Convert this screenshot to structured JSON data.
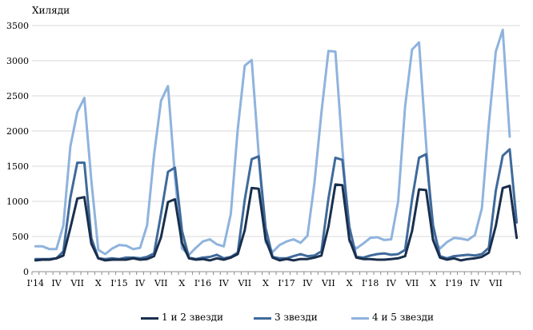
{
  "chart_data": {
    "type": "line",
    "unit_label": "Хиляди",
    "ylim": [
      0,
      3500
    ],
    "yticks": [
      0,
      500,
      1000,
      1500,
      2000,
      2500,
      3000,
      3500
    ],
    "x_tick_labels": [
      "I'14",
      "IV",
      "VII",
      "X",
      "I'15",
      "IV",
      "VII",
      "X",
      "I'16",
      "IV",
      "VII",
      "X",
      "I'17",
      "IV",
      "VII",
      "X",
      "I'18",
      "IV",
      "VII",
      "X",
      "I'19",
      "IV",
      "VII"
    ],
    "grid": "horizontal",
    "legend_position": "bottom",
    "series": [
      {
        "name": "1 и 2 звезди",
        "color": "#1a2f4d",
        "values": [
          160,
          170,
          170,
          190,
          230,
          620,
          1040,
          1060,
          400,
          190,
          160,
          170,
          170,
          170,
          190,
          170,
          180,
          220,
          490,
          990,
          1030,
          410,
          190,
          170,
          180,
          160,
          190,
          170,
          200,
          250,
          590,
          1190,
          1180,
          460,
          200,
          160,
          180,
          160,
          180,
          180,
          200,
          230,
          640,
          1240,
          1230,
          460,
          200,
          180,
          180,
          170,
          170,
          180,
          190,
          220,
          580,
          1170,
          1160,
          450,
          200,
          170,
          190,
          160,
          180,
          190,
          210,
          270,
          650,
          1190,
          1220,
          480
        ]
      },
      {
        "name": "3 звезди",
        "color": "#3f6a9b",
        "values": [
          180,
          180,
          180,
          190,
          290,
          1050,
          1550,
          1550,
          480,
          190,
          180,
          190,
          180,
          200,
          200,
          190,
          210,
          260,
          820,
          1420,
          1480,
          580,
          200,
          180,
          200,
          210,
          240,
          190,
          210,
          270,
          1020,
          1600,
          1640,
          620,
          210,
          190,
          190,
          220,
          250,
          220,
          230,
          290,
          1040,
          1620,
          1590,
          640,
          210,
          200,
          230,
          250,
          260,
          240,
          250,
          310,
          1030,
          1620,
          1670,
          660,
          220,
          190,
          220,
          230,
          240,
          230,
          250,
          340,
          1150,
          1650,
          1740,
          700
        ]
      },
      {
        "name": "4 и 5 звезди",
        "color": "#8fb3dd",
        "values": [
          360,
          360,
          320,
          320,
          660,
          1780,
          2270,
          2470,
          1300,
          310,
          250,
          330,
          380,
          370,
          320,
          340,
          660,
          1660,
          2430,
          2640,
          1350,
          330,
          240,
          340,
          430,
          460,
          390,
          360,
          820,
          2030,
          2930,
          3010,
          1680,
          420,
          280,
          380,
          430,
          460,
          410,
          510,
          1260,
          2260,
          3140,
          3130,
          1750,
          430,
          330,
          400,
          480,
          490,
          450,
          460,
          1000,
          2350,
          3160,
          3260,
          1820,
          470,
          330,
          420,
          480,
          470,
          450,
          520,
          900,
          2100,
          3130,
          3440,
          1920
        ]
      }
    ]
  }
}
